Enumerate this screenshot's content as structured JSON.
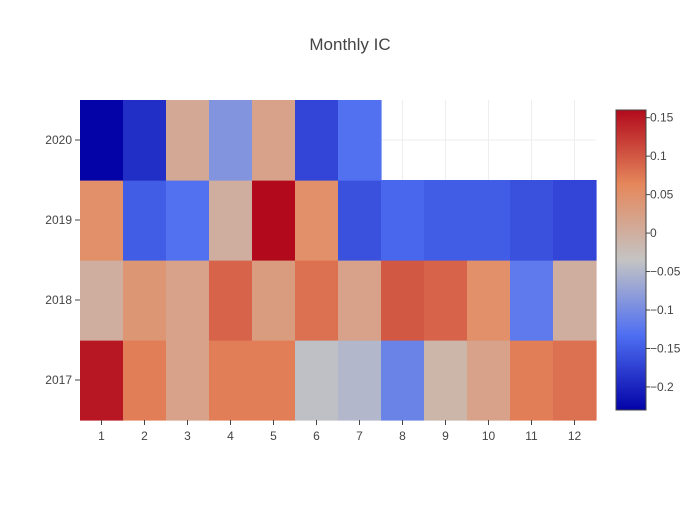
{
  "chart_data": {
    "type": "heatmap",
    "title": "Monthly IC",
    "x": [
      "1",
      "2",
      "3",
      "4",
      "5",
      "6",
      "7",
      "8",
      "9",
      "10",
      "11",
      "12"
    ],
    "y": [
      "2017",
      "2018",
      "2019",
      "2020"
    ],
    "z": [
      [
        0.15,
        0.07,
        0.02,
        0.07,
        0.07,
        -0.04,
        -0.05,
        -0.11,
        -0.01,
        0.02,
        0.07,
        0.08
      ],
      [
        0.0,
        0.04,
        0.02,
        0.09,
        0.03,
        0.08,
        0.02,
        0.1,
        0.09,
        0.05,
        -0.12,
        0.0
      ],
      [
        0.05,
        -0.15,
        -0.13,
        0.0,
        0.16,
        0.05,
        -0.16,
        -0.14,
        -0.15,
        -0.15,
        -0.16,
        -0.17
      ],
      [
        -0.23,
        -0.19,
        0.01,
        -0.09,
        0.02,
        -0.17,
        -0.13,
        null,
        null,
        null,
        null,
        null
      ]
    ],
    "zmin": -0.23,
    "zmax": 0.16,
    "colorscale": [
      "#0303a8",
      "#4f6ff2",
      "#c4c4c4",
      "#e5885c",
      "#b20a1c"
    ],
    "colorbar_ticks": [
      "0.15",
      "0.1",
      "0.05",
      "0",
      "−0.05",
      "−0.1",
      "−0.15",
      "−0.2"
    ],
    "colorbar_tick_values": [
      0.15,
      0.1,
      0.05,
      0,
      -0.05,
      -0.1,
      -0.15,
      -0.2
    ],
    "xlabel": "",
    "ylabel": ""
  }
}
